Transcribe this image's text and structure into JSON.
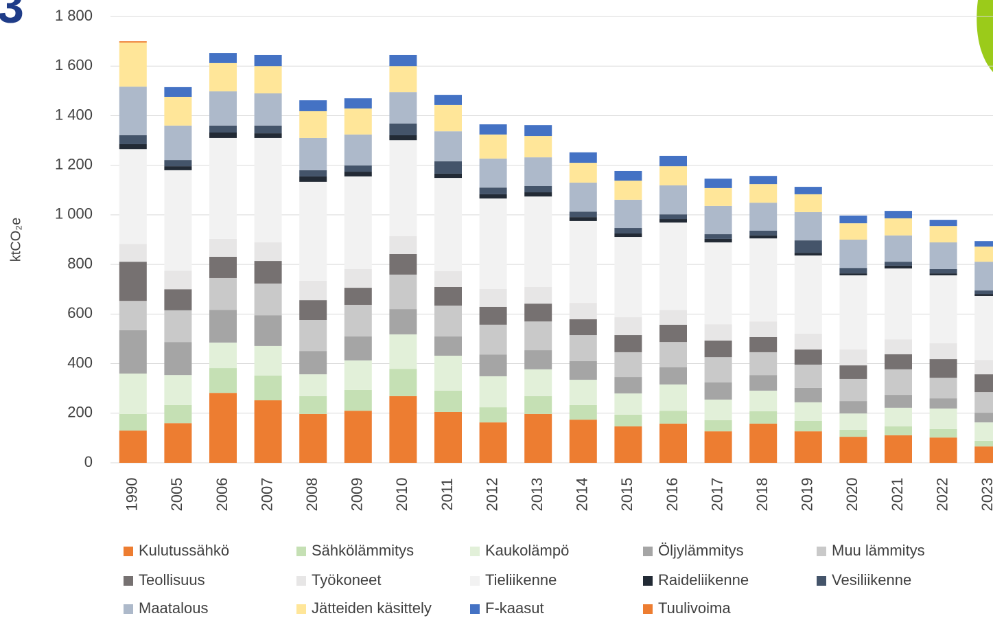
{
  "page_number": "3",
  "chart_data": {
    "type": "stacked_bar",
    "y_label": "ktCO₂e",
    "categories": [
      "1990",
      "2005",
      "2006",
      "2007",
      "2008",
      "2009",
      "2010",
      "2011",
      "2012",
      "2013",
      "2014",
      "2015",
      "2016",
      "2017",
      "2018",
      "2019",
      "2020",
      "2021",
      "2022",
      "2023"
    ],
    "ylim": [
      0,
      1800
    ],
    "yticks": [
      0,
      200,
      400,
      600,
      800,
      {
        "value": 1000,
        "label": "1 000"
      },
      {
        "value": 1200,
        "label": "1 200"
      },
      {
        "value": 1400,
        "label": "1 400"
      },
      {
        "value": 1600,
        "label": "1 600"
      },
      {
        "value": 1800,
        "label": "1 800"
      }
    ],
    "grid": true,
    "legend": "bottom",
    "series": [
      {
        "name": "Kulutussähkö",
        "color": "#ed7d31",
        "values": [
          130,
          160,
          282,
          252,
          197,
          210,
          269,
          205,
          163,
          197,
          174,
          147,
          158,
          127,
          158,
          127,
          105,
          111,
          102,
          66
        ]
      },
      {
        "name": "Sähkölämmitys",
        "color": "#c5e0b4",
        "values": [
          67,
          73,
          100,
          100,
          72,
          84,
          110,
          86,
          61,
          72,
          59,
          47,
          52,
          45,
          50,
          42,
          28,
          36,
          34,
          23
        ]
      },
      {
        "name": "Kaukolämpö",
        "color": "#e2f0d9",
        "values": [
          163,
          121,
          103,
          119,
          88,
          119,
          139,
          141,
          125,
          108,
          102,
          86,
          106,
          83,
          83,
          75,
          66,
          75,
          83,
          74
        ]
      },
      {
        "name": "Öljylämmitys",
        "color": "#a5a5a5",
        "values": [
          175,
          133,
          132,
          124,
          94,
          97,
          102,
          78,
          88,
          77,
          75,
          66,
          69,
          69,
          63,
          58,
          50,
          52,
          41,
          39
        ]
      },
      {
        "name": "Muu lämmitys",
        "color": "#c9c9c9",
        "values": [
          118,
          128,
          128,
          128,
          125,
          127,
          139,
          124,
          120,
          116,
          105,
          100,
          102,
          102,
          92,
          94,
          89,
          103,
          83,
          83
        ]
      },
      {
        "name": "Teollisuus",
        "color": "#767171",
        "values": [
          158,
          85,
          86,
          91,
          80,
          69,
          83,
          75,
          72,
          72,
          64,
          69,
          70,
          67,
          61,
          61,
          55,
          61,
          75,
          72
        ]
      },
      {
        "name": "Työkoneet",
        "color": "#e7e6e6",
        "values": [
          72,
          75,
          72,
          75,
          78,
          75,
          72,
          64,
          72,
          67,
          66,
          72,
          60,
          66,
          63,
          64,
          64,
          60,
          64,
          58
        ]
      },
      {
        "name": "Tieliikenne",
        "color": "#f2f2f2",
        "values": [
          382,
          405,
          407,
          421,
          399,
          374,
          387,
          376,
          365,
          365,
          330,
          324,
          352,
          330,
          335,
          315,
          299,
          286,
          274,
          258
        ]
      },
      {
        "name": "Raideliikenne",
        "color": "#222a35",
        "values": [
          20,
          16,
          22,
          19,
          22,
          19,
          20,
          17,
          17,
          17,
          16,
          14,
          14,
          14,
          12,
          11,
          8,
          11,
          8,
          8
        ]
      },
      {
        "name": "Vesiliikenne",
        "color": "#44546a",
        "values": [
          36,
          25,
          28,
          31,
          25,
          25,
          47,
          50,
          27,
          25,
          22,
          22,
          19,
          19,
          19,
          50,
          22,
          16,
          17,
          14
        ]
      },
      {
        "name": "Maatalous",
        "color": "#adb9ca",
        "values": [
          196,
          139,
          138,
          130,
          130,
          125,
          127,
          121,
          117,
          116,
          117,
          114,
          117,
          114,
          113,
          114,
          114,
          106,
          108,
          116
        ]
      },
      {
        "name": "Jätteiden käsittely",
        "color": "#ffe699",
        "values": [
          178,
          116,
          114,
          110,
          108,
          105,
          105,
          106,
          97,
          86,
          80,
          77,
          77,
          72,
          75,
          72,
          66,
          69,
          66,
          61
        ]
      },
      {
        "name": "F-kaasut",
        "color": "#4472c4",
        "values": [
          0,
          39,
          41,
          45,
          44,
          41,
          45,
          41,
          41,
          44,
          42,
          39,
          42,
          38,
          33,
          30,
          31,
          30,
          25,
          22
        ]
      },
      {
        "name": "Tuulivoima",
        "color": "#ed7d31",
        "values": [
          5,
          0,
          0,
          0,
          0,
          0,
          0,
          0,
          0,
          0,
          0,
          0,
          0,
          0,
          0,
          0,
          0,
          0,
          0,
          0
        ]
      }
    ]
  }
}
